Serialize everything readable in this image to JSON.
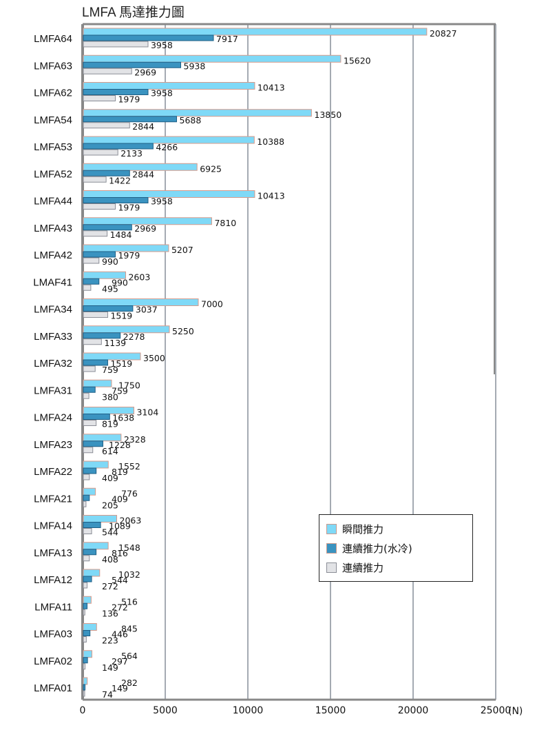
{
  "chart_data": {
    "type": "bar",
    "orientation": "horizontal",
    "title": "LMFA 馬達推力圖",
    "xlabel": "(N)",
    "ylabel": "",
    "xlim": [
      0,
      25000
    ],
    "xticks": [
      "0",
      "5000",
      "10000",
      "15000",
      "20000",
      "25000"
    ],
    "grid": true,
    "legend_position": "bottom-right",
    "categories": [
      "LMFA64",
      "LMFA63",
      "LMFA62",
      "LMFA54",
      "LMFA53",
      "LMFA52",
      "LMFA44",
      "LMFA43",
      "LMFA42",
      "LMAF41",
      "LMFA34",
      "LMFA33",
      "LMFA32",
      "LMFA31",
      "LMFA24",
      "LMFA23",
      "LMFA22",
      "LMFA21",
      "LMFA14",
      "LMFA13",
      "LMFA12",
      "LMFA11",
      "LMFA03",
      "LMFA02",
      "LMFA01"
    ],
    "series": [
      {
        "name": "瞬間推力",
        "color": "#7fd9f7",
        "edge": "#d89a8a",
        "values": [
          20827,
          15620,
          10413,
          13850,
          10388,
          6925,
          10413,
          7810,
          5207,
          2603,
          7000,
          5250,
          3500,
          1750,
          3104,
          2328,
          1552,
          776,
          2063,
          1548,
          1032,
          516,
          845,
          564,
          282
        ]
      },
      {
        "name": "連續推力(水冷)",
        "color": "#3a93c0",
        "edge": "#1f5f85",
        "values": [
          7917,
          5938,
          3958,
          5688,
          4266,
          2844,
          3958,
          2969,
          1979,
          990,
          3037,
          2278,
          1519,
          759,
          1638,
          1228,
          819,
          409,
          1089,
          816,
          544,
          272,
          446,
          297,
          149
        ]
      },
      {
        "name": "連續推力",
        "color": "#e2e3e6",
        "edge": "#8a8d96",
        "values": [
          3958,
          2969,
          1979,
          2844,
          2133,
          1422,
          1979,
          1484,
          990,
          495,
          1519,
          1139,
          759,
          380,
          819,
          614,
          409,
          205,
          544,
          408,
          272,
          136,
          223,
          149,
          74
        ]
      }
    ]
  }
}
